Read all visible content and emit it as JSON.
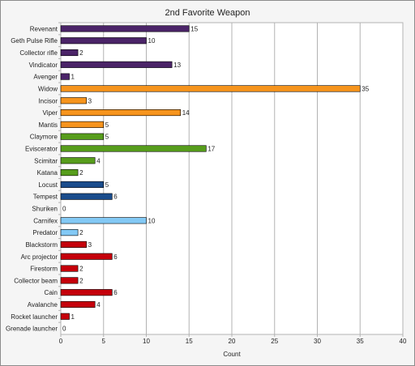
{
  "chart_data": {
    "type": "bar",
    "orientation": "horizontal",
    "title": "2nd Favorite Weapon",
    "xlabel": "Count",
    "ylabel": "",
    "xlim": [
      0,
      40
    ],
    "xticks": [
      0,
      5,
      10,
      15,
      20,
      25,
      30,
      35,
      40
    ],
    "grid": true,
    "legend": "none",
    "categories": [
      "Revenant",
      "Geth Pulse Rifle",
      "Collector rifle",
      "Vindicator",
      "Avenger",
      "Widow",
      "Incisor",
      "Viper",
      "Mantis",
      "Claymore",
      "Eviscerator",
      "Scimitar",
      "Katana",
      "Locust",
      "Tempest",
      "Shuriken",
      "Carnifex",
      "Predator",
      "Blackstorm",
      "Arc projector",
      "Firestorm",
      "Collector beam",
      "Cain",
      "Avalanche",
      "Rocket launcher",
      "Grenade launcher"
    ],
    "values": [
      15,
      10,
      2,
      13,
      1,
      35,
      3,
      14,
      5,
      5,
      17,
      4,
      2,
      5,
      6,
      0,
      10,
      2,
      3,
      6,
      2,
      2,
      6,
      4,
      1,
      0
    ],
    "colors": [
      "#4b2468",
      "#4b2468",
      "#4b2468",
      "#4b2468",
      "#4b2468",
      "#f6941d",
      "#f6941d",
      "#f6941d",
      "#f6941d",
      "#579d1c",
      "#579d1c",
      "#579d1c",
      "#579d1c",
      "#1a4c8c",
      "#1a4c8c",
      "#1a4c8c",
      "#83c9f5",
      "#83c9f5",
      "#c5000b",
      "#c5000b",
      "#c5000b",
      "#c5000b",
      "#c5000b",
      "#c5000b",
      "#c5000b",
      "#c5000b"
    ]
  }
}
